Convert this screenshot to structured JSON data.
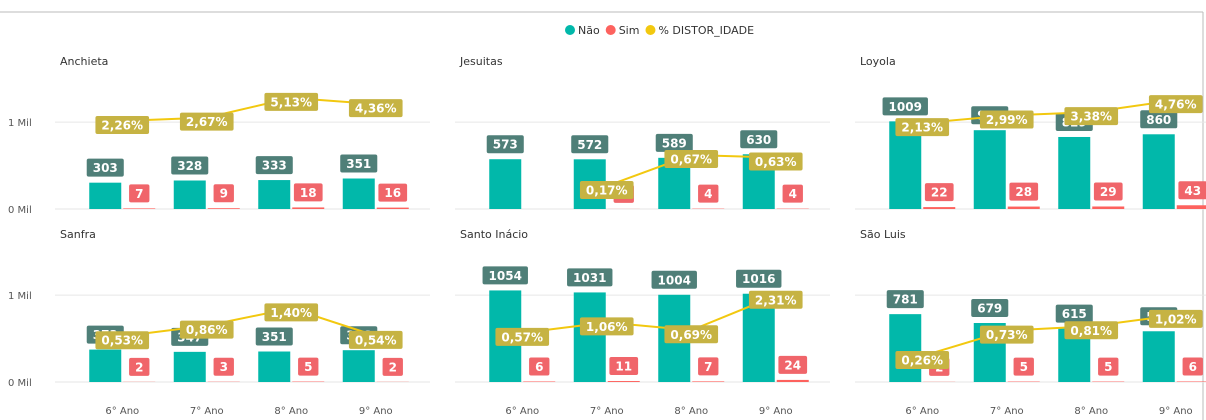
{
  "chart_data": [
    {
      "type": "bar",
      "title": "Anchieta",
      "legend": "top",
      "series": [
        {
          "name": "Não",
          "color": "#01B8AA",
          "values": [
            303,
            328,
            333,
            351
          ]
        },
        {
          "name": "Sim",
          "color": "#FD625E",
          "values": [
            7,
            9,
            18,
            16
          ]
        },
        {
          "name": "% DISTOR_IDADE",
          "type": "line",
          "axis": "y2",
          "color": "#F2C80F",
          "values": [
            2.26,
            2.67,
            5.13,
            4.36
          ],
          "value_labels": [
            "2,26%",
            "2,67%",
            "5,13%",
            "4,36%"
          ]
        }
      ],
      "ylim": [
        0,
        1600
      ],
      "yticks": [
        {
          "value": 0,
          "label": "0 Mil"
        },
        {
          "value": 1000,
          "label": "1 Mil"
        }
      ],
      "y2lim": [
        -8.7,
        8.6
      ]
    },
    {
      "type": "bar",
      "title": "Jesuitas",
      "series": [
        {
          "name": "Não",
          "color": "#01B8AA",
          "values": [
            573,
            572,
            589,
            630
          ]
        },
        {
          "name": "Sim",
          "color": "#FD625E",
          "values": [
            null,
            1,
            4,
            4
          ]
        },
        {
          "name": "% DISTOR_IDADE",
          "type": "line",
          "axis": "y2",
          "color": "#F2C80F",
          "values": [
            null,
            0.17,
            0.67,
            0.63
          ],
          "value_labels": [
            null,
            "0,17%",
            "0,67%",
            "0,63%"
          ]
        }
      ],
      "ylim": [
        0,
        1600
      ],
      "yticks": [
        0,
        1000
      ],
      "y2lim": [
        -0.2,
        2.04
      ]
    },
    {
      "type": "bar",
      "title": "Loyola",
      "series": [
        {
          "name": "Não",
          "color": "#01B8AA",
          "values": [
            1009,
            907,
            829,
            860
          ]
        },
        {
          "name": "Sim",
          "color": "#FD625E",
          "values": [
            22,
            28,
            29,
            43
          ]
        },
        {
          "name": "% DISTOR_IDADE",
          "type": "line",
          "axis": "y2",
          "color": "#F2C80F",
          "values": [
            2.13,
            2.99,
            3.38,
            4.76
          ],
          "value_labels": [
            "2,13%",
            "2,99%",
            "3,38%",
            "4,76%"
          ]
        }
      ],
      "ylim": [
        0,
        1600
      ],
      "yticks": [
        0,
        1000
      ],
      "y2lim": [
        -7.7,
        8.2
      ]
    },
    {
      "type": "bar",
      "title": "Sanfra",
      "categories": [
        "6° Ano",
        "7° Ano",
        "8° Ano",
        "9° Ano"
      ],
      "series": [
        {
          "name": "Não",
          "color": "#01B8AA",
          "values": [
            373,
            347,
            351,
            366
          ]
        },
        {
          "name": "Sim",
          "color": "#FD625E",
          "values": [
            2,
            3,
            5,
            2
          ]
        },
        {
          "name": "% DISTOR_IDADE",
          "type": "line",
          "axis": "y2",
          "color": "#F2C80F",
          "values": [
            0.53,
            0.86,
            1.4,
            0.54
          ],
          "value_labels": [
            "0,53%",
            "0,86%",
            "1,40%",
            "0,54%"
          ]
        }
      ],
      "ylim": [
        0,
        1600
      ],
      "yticks": [
        {
          "value": 0,
          "label": "0 Mil"
        },
        {
          "value": 1000,
          "label": "1 Mil"
        }
      ],
      "y2lim": [
        -0.9,
        3.44
      ]
    },
    {
      "type": "bar",
      "title": "Santo Inácio",
      "categories": [
        "6° Ano",
        "7° Ano",
        "8° Ano",
        "9° Ano"
      ],
      "series": [
        {
          "name": "Não",
          "color": "#01B8AA",
          "values": [
            1054,
            1031,
            1004,
            1016
          ]
        },
        {
          "name": "Sim",
          "color": "#FD625E",
          "values": [
            6,
            11,
            7,
            24
          ]
        },
        {
          "name": "% DISTOR_IDADE",
          "type": "line",
          "axis": "y2",
          "color": "#F2C80F",
          "values": [
            0.57,
            1.06,
            0.69,
            2.31
          ],
          "value_labels": [
            "0,57%",
            "1,06%",
            "0,69%",
            "2,31%"
          ]
        }
      ],
      "ylim": [
        0,
        1600
      ],
      "yticks": [
        0,
        1000
      ],
      "y2lim": [
        -1.74,
        4.79
      ]
    },
    {
      "type": "bar",
      "title": "São Luis",
      "categories": [
        "6° Ano",
        "7° Ano",
        "8° Ano",
        "9° Ano"
      ],
      "series": [
        {
          "name": "Não",
          "color": "#01B8AA",
          "values": [
            781,
            679,
            615,
            584
          ]
        },
        {
          "name": "Sim",
          "color": "#FD625E",
          "values": [
            2,
            5,
            5,
            6
          ]
        },
        {
          "name": "% DISTOR_IDADE",
          "type": "line",
          "axis": "y2",
          "color": "#F2C80F",
          "values": [
            0.26,
            0.73,
            0.81,
            1.02
          ],
          "value_labels": [
            "0,26%",
            "0,73%",
            "0,81%",
            "1,02%"
          ]
        }
      ],
      "ylim": [
        0,
        1600
      ],
      "yticks": [
        0,
        1000
      ],
      "y2lim": [
        -0.22,
        2.35
      ]
    }
  ]
}
